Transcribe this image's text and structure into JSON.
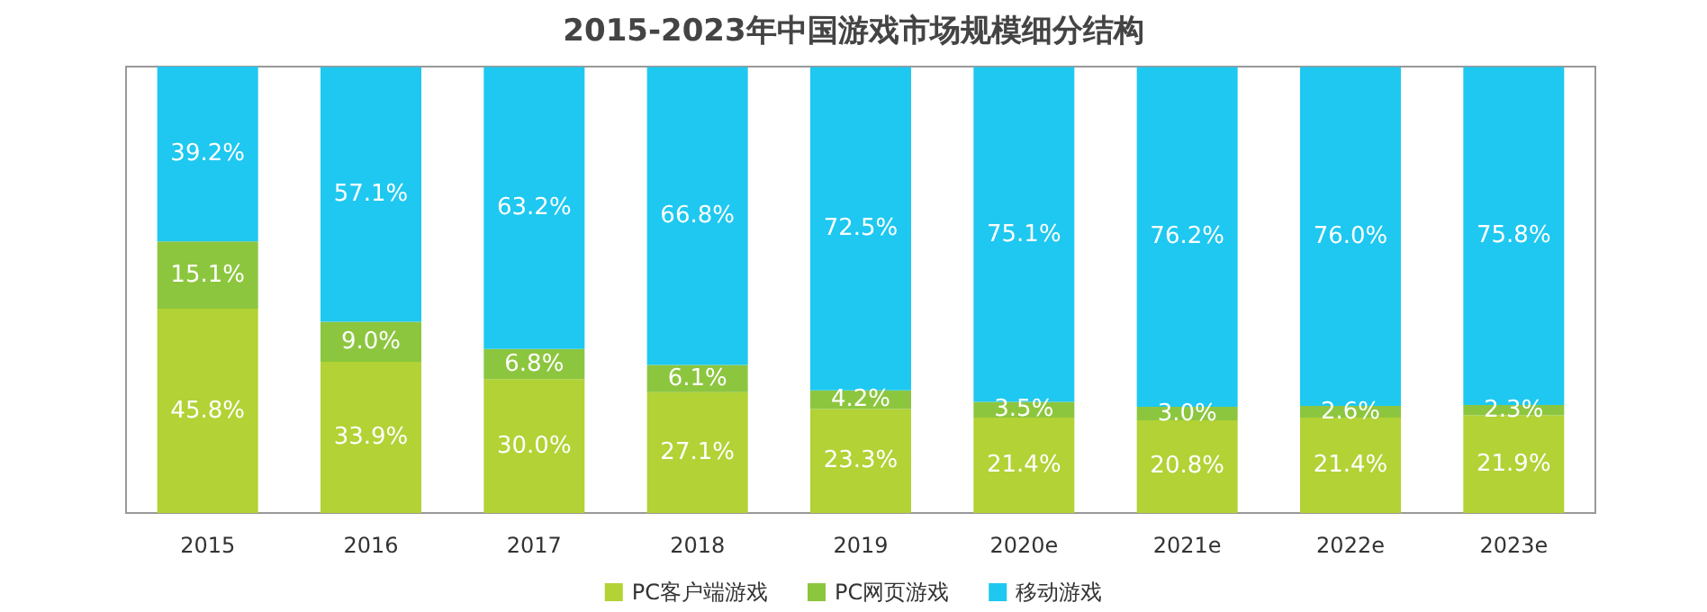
{
  "chart_data": {
    "type": "bar",
    "stacked": true,
    "legend": "bottom",
    "title": "2015-2023年中国游戏市场规模细分结构",
    "categories": [
      "2015",
      "2016",
      "2017",
      "2018",
      "2019",
      "2020e",
      "2021e",
      "2022e",
      "2023e"
    ],
    "series": [
      {
        "name": "PC客户端游戏",
        "color": "#b2d235",
        "values": [
          45.8,
          33.9,
          30.0,
          27.1,
          23.3,
          21.4,
          20.8,
          21.4,
          21.9
        ],
        "value_labels": [
          "45.8%",
          "33.9%",
          "30.0%",
          "27.1%",
          "23.3%",
          "21.4%",
          "20.8%",
          "21.4%",
          "21.9%"
        ]
      },
      {
        "name": "PC网页游戏",
        "color": "#8cc63f",
        "values": [
          15.1,
          9.0,
          6.8,
          6.1,
          4.2,
          3.5,
          3.0,
          2.6,
          2.3
        ],
        "value_labels": [
          "15.1%",
          "9.0%",
          "6.8%",
          "6.1%",
          "4.2%",
          "3.5%",
          "3.0%",
          "2.6%",
          "2.3%"
        ]
      },
      {
        "name": "移动游戏",
        "color": "#1ec8f0",
        "values": [
          39.2,
          57.1,
          63.2,
          66.8,
          72.5,
          75.1,
          76.2,
          76.0,
          75.8
        ],
        "value_labels": [
          "39.2%",
          "57.1%",
          "63.2%",
          "66.8%",
          "72.5%",
          "75.1%",
          "76.2%",
          "76.0%",
          "75.8%"
        ]
      }
    ]
  }
}
